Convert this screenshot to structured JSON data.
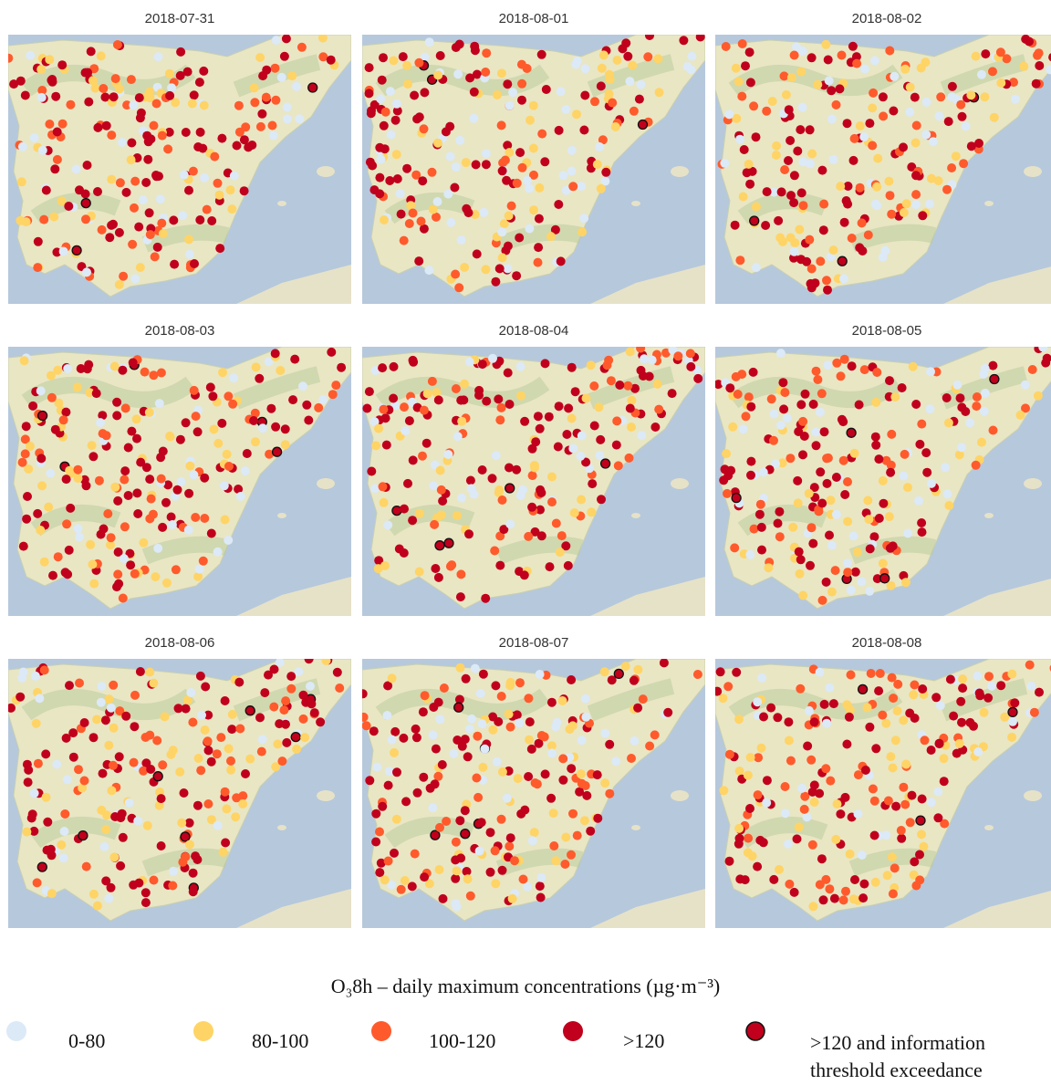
{
  "panels": [
    {
      "title": "2018-07-31"
    },
    {
      "title": "2018-08-01"
    },
    {
      "title": "2018-08-02"
    },
    {
      "title": "2018-08-03"
    },
    {
      "title": "2018-08-04"
    },
    {
      "title": "2018-08-05"
    },
    {
      "title": "2018-08-06"
    },
    {
      "title": "2018-08-07"
    },
    {
      "title": "2018-08-08"
    }
  ],
  "legend": {
    "title": "O₃8h – daily maximum concentrations (µg·m⁻³)",
    "items": [
      {
        "label": "0-80",
        "color": "#dce9f6"
      },
      {
        "label": "80-100",
        "color": "#ffd466"
      },
      {
        "label": "100-120",
        "color": "#ff5a2c"
      },
      {
        "label": ">120",
        "color": "#c0001c"
      },
      {
        "label": ">120 and information threshold exceedance",
        "color": "#c0001c"
      }
    ]
  }
}
